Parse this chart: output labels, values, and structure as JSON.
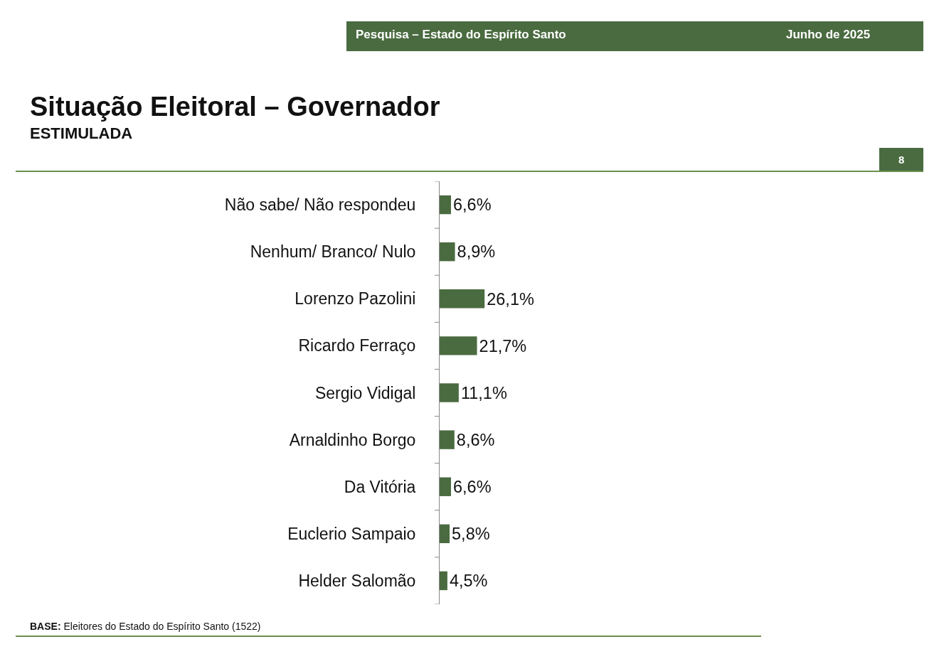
{
  "chart_data": {
    "type": "bar",
    "orientation": "horizontal",
    "title": "Situação Eleitoral – Governador",
    "subtitle": "ESTIMULADA",
    "categories": [
      "Não sabe/ Não respondeu",
      "Nenhum/ Branco/ Nulo",
      "Lorenzo Pazolini",
      "Ricardo Ferraço",
      "Sergio Vidigal",
      "Arnaldinho Borgo",
      "Da Vitória",
      "Euclerio Sampaio",
      "Helder Salomão"
    ],
    "values": [
      6.6,
      8.9,
      26.1,
      21.7,
      11.1,
      8.6,
      6.6,
      5.8,
      4.5
    ],
    "value_labels": [
      "6,6%",
      "8,9%",
      "26,1%",
      "21,7%",
      "11,1%",
      "8,6%",
      "6,6%",
      "5,8%",
      "4,5%"
    ],
    "color": "#4a6b40",
    "tick_labels": "y",
    "legend": false,
    "annotations": [
      "Pesquisa – Estado do Espírito Santo",
      "Junho de 2025",
      "8",
      "BASE: Eleitores do Estado do Espírito Santo (1522)"
    ]
  }
}
